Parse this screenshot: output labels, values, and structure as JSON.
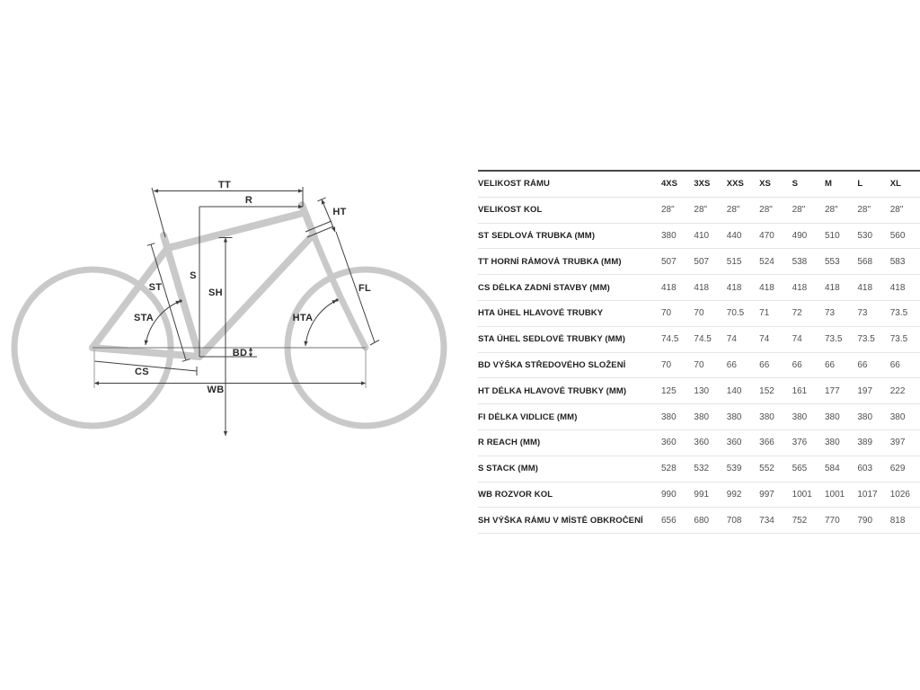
{
  "diagram": {
    "labels": {
      "tt": "TT",
      "r": "R",
      "ht": "HT",
      "st": "ST",
      "s": "S",
      "sh": "SH",
      "fl": "FL",
      "sta": "STA",
      "hta": "HTA",
      "bd": "BD",
      "cs": "CS",
      "wb": "WB"
    }
  },
  "table": {
    "header": {
      "label": "VELIKOST RÁMU",
      "columns": [
        "4XS",
        "3XS",
        "XXS",
        "XS",
        "S",
        "M",
        "L",
        "XL"
      ]
    },
    "rows": [
      {
        "label": "VELIKOST KOL",
        "values": [
          "28\"",
          "28\"",
          "28\"",
          "28\"",
          "28\"",
          "28\"",
          "28\"",
          "28\""
        ]
      },
      {
        "label": "ST SEDLOVÁ TRUBKA (MM)",
        "values": [
          "380",
          "410",
          "440",
          "470",
          "490",
          "510",
          "530",
          "560"
        ]
      },
      {
        "label": "TT HORNÍ RÁMOVÁ TRUBKA (MM)",
        "values": [
          "507",
          "507",
          "515",
          "524",
          "538",
          "553",
          "568",
          "583"
        ]
      },
      {
        "label": "CS DÉLKA ZADNÍ STAVBY (MM)",
        "values": [
          "418",
          "418",
          "418",
          "418",
          "418",
          "418",
          "418",
          "418"
        ]
      },
      {
        "label": "HTA ÚHEL HLAVOVÉ TRUBKY",
        "values": [
          "70",
          "70",
          "70.5",
          "71",
          "72",
          "73",
          "73",
          "73.5"
        ]
      },
      {
        "label": "STA ÚHEL SEDLOVÉ TRUBKY (MM)",
        "values": [
          "74.5",
          "74.5",
          "74",
          "74",
          "74",
          "73.5",
          "73.5",
          "73.5"
        ]
      },
      {
        "label": "BD VÝŠKA STŘEDOVÉHO SLOŽENÍ",
        "values": [
          "70",
          "70",
          "66",
          "66",
          "66",
          "66",
          "66",
          "66"
        ]
      },
      {
        "label": "HT DÉLKA HLAVOVÉ TRUBKY (MM)",
        "values": [
          "125",
          "130",
          "140",
          "152",
          "161",
          "177",
          "197",
          "222"
        ]
      },
      {
        "label": "FI DÉLKA VIDLICE (MM)",
        "values": [
          "380",
          "380",
          "380",
          "380",
          "380",
          "380",
          "380",
          "380"
        ]
      },
      {
        "label": "R REACH (MM)",
        "values": [
          "360",
          "360",
          "360",
          "366",
          "376",
          "380",
          "389",
          "397"
        ]
      },
      {
        "label": "S STACK (MM)",
        "values": [
          "528",
          "532",
          "539",
          "552",
          "565",
          "584",
          "603",
          "629"
        ]
      },
      {
        "label": "WB ROZVOR KOL",
        "values": [
          "990",
          "991",
          "992",
          "997",
          "1001",
          "1001",
          "1017",
          "1026"
        ]
      },
      {
        "label": "SH VÝŠKA RÁMU V MÍSTĚ OBKROČENÍ",
        "values": [
          "656",
          "680",
          "708",
          "734",
          "752",
          "770",
          "790",
          "818"
        ]
      }
    ]
  },
  "colors": {
    "frame_gray": "#c9c9c9",
    "dimension_line": "#3f3f3f",
    "label_text": "#1f1f1f",
    "value_text": "#4f4f4f",
    "row_separator": "#e4e4e4",
    "table_top_border": "#4a4a4a",
    "background": "#ffffff"
  }
}
